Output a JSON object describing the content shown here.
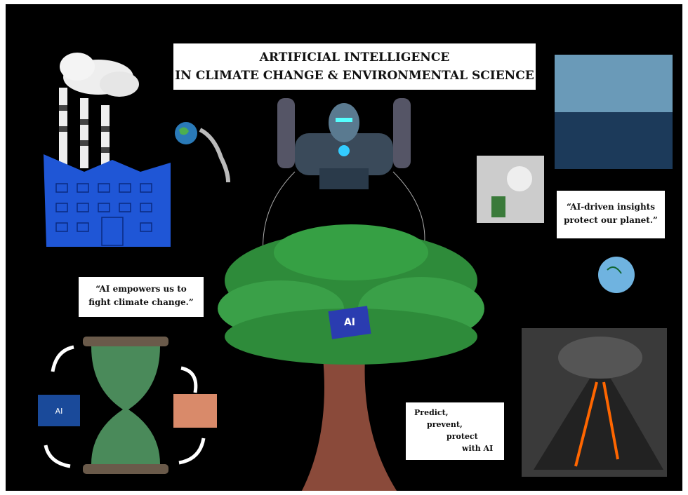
{
  "title": {
    "lines": [
      "ARTIFICIAL INTELLIGENCE",
      "IN CLIMATE CHANGE & ENVIRONMENTAL SCIENCE"
    ]
  },
  "quotes": [
    {
      "lines": [
        "“AI empowers us to",
        "fight climate change.”"
      ]
    },
    {
      "lines": [
        "“AI-driven insights",
        "protect our planet.”"
      ]
    },
    {
      "lines": [
        "Predict,",
        "prevent,",
        "protect",
        "with AI"
      ]
    }
  ],
  "chip_label": "AI",
  "cycle_label": "AI"
}
